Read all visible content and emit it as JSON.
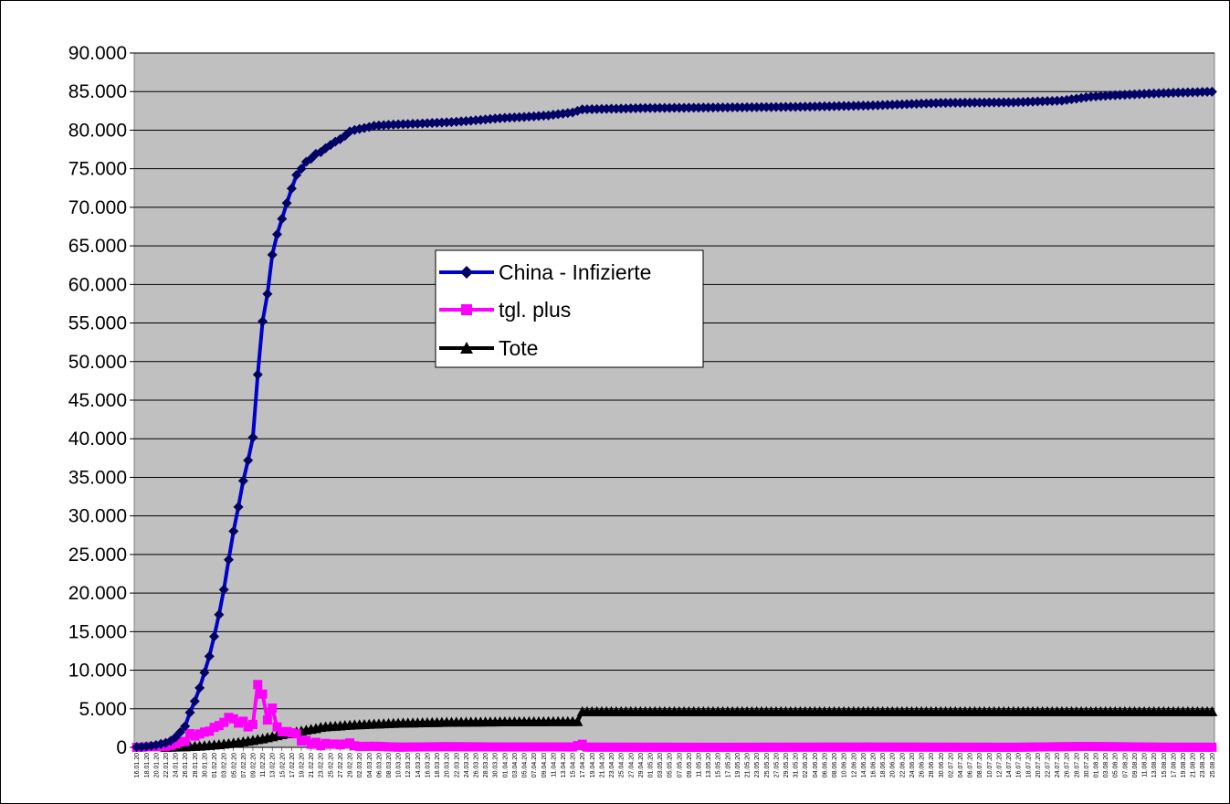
{
  "chart_data": {
    "type": "line",
    "title": "",
    "xlabel": "",
    "ylabel": "",
    "ylim": [
      0,
      90000
    ],
    "yticks": [
      0,
      5000,
      10000,
      15000,
      20000,
      25000,
      30000,
      35000,
      40000,
      45000,
      50000,
      55000,
      60000,
      65000,
      70000,
      75000,
      80000,
      85000,
      90000
    ],
    "ytick_labels": [
      "0",
      "5.000",
      "10.000",
      "15.000",
      "20.000",
      "25.000",
      "30.000",
      "35.000",
      "40.000",
      "45.000",
      "50.000",
      "55.000",
      "60.000",
      "65.000",
      "70.000",
      "75.000",
      "80.000",
      "85.000",
      "90.000"
    ],
    "x_start": "2020-01-16",
    "x_end": "2020-08-25",
    "xtick_every_days": 2,
    "xtick_format": "DD.MM.20",
    "grid": true,
    "plot_background": "#c0c0c0",
    "legend_position": "center",
    "series": [
      {
        "name": "China - Infizierte",
        "color": "#0000cc",
        "marker": "diamond",
        "values_by_date": [
          [
            "2020-01-16",
            45
          ],
          [
            "2020-01-17",
            62
          ],
          [
            "2020-01-18",
            121
          ],
          [
            "2020-01-19",
            198
          ],
          [
            "2020-01-20",
            291
          ],
          [
            "2020-01-21",
            440
          ],
          [
            "2020-01-22",
            571
          ],
          [
            "2020-01-23",
            830
          ],
          [
            "2020-01-24",
            1287
          ],
          [
            "2020-01-25",
            1975
          ],
          [
            "2020-01-26",
            2744
          ],
          [
            "2020-01-27",
            4515
          ],
          [
            "2020-01-28",
            5974
          ],
          [
            "2020-01-29",
            7711
          ],
          [
            "2020-01-30",
            9692
          ],
          [
            "2020-01-31",
            11791
          ],
          [
            "2020-02-01",
            14380
          ],
          [
            "2020-02-02",
            17205
          ],
          [
            "2020-02-03",
            20438
          ],
          [
            "2020-02-04",
            24324
          ],
          [
            "2020-02-05",
            28018
          ],
          [
            "2020-02-06",
            31161
          ],
          [
            "2020-02-07",
            34546
          ],
          [
            "2020-02-08",
            37198
          ],
          [
            "2020-02-09",
            40171
          ],
          [
            "2020-02-10",
            48315
          ],
          [
            "2020-02-11",
            55220
          ],
          [
            "2020-02-12",
            58761
          ],
          [
            "2020-02-13",
            63851
          ],
          [
            "2020-02-14",
            66492
          ],
          [
            "2020-02-15",
            68500
          ],
          [
            "2020-02-16",
            70548
          ],
          [
            "2020-02-17",
            72436
          ],
          [
            "2020-02-18",
            74185
          ],
          [
            "2020-02-19",
            75002
          ],
          [
            "2020-02-20",
            75891
          ],
          [
            "2020-02-21",
            76288
          ],
          [
            "2020-02-22",
            76936
          ],
          [
            "2020-02-23",
            77150
          ],
          [
            "2020-02-24",
            77658
          ],
          [
            "2020-02-25",
            78064
          ],
          [
            "2020-02-26",
            78497
          ],
          [
            "2020-02-27",
            78824
          ],
          [
            "2020-02-28",
            79251
          ],
          [
            "2020-02-29",
            79824
          ],
          [
            "2020-03-01",
            80026
          ],
          [
            "2020-03-02",
            80151
          ],
          [
            "2020-03-03",
            80270
          ],
          [
            "2020-03-04",
            80409
          ],
          [
            "2020-03-05",
            80552
          ],
          [
            "2020-03-07",
            80651
          ],
          [
            "2020-03-10",
            80754
          ],
          [
            "2020-03-15",
            80860
          ],
          [
            "2020-03-20",
            81008
          ],
          [
            "2020-03-25",
            81218
          ],
          [
            "2020-03-31",
            81554
          ],
          [
            "2020-04-05",
            81708
          ],
          [
            "2020-04-10",
            81907
          ],
          [
            "2020-04-15",
            82295
          ],
          [
            "2020-04-17",
            82692
          ],
          [
            "2020-04-30",
            82862
          ],
          [
            "2020-05-15",
            82933
          ],
          [
            "2020-05-31",
            83017
          ],
          [
            "2020-06-15",
            83181
          ],
          [
            "2020-06-30",
            83531
          ],
          [
            "2020-07-15",
            83611
          ],
          [
            "2020-07-25",
            83830
          ],
          [
            "2020-07-31",
            84337
          ],
          [
            "2020-08-05",
            84528
          ],
          [
            "2020-08-15",
            84808
          ],
          [
            "2020-08-25",
            84981
          ]
        ]
      },
      {
        "name": "tgl. plus",
        "color": "#ff00ff",
        "marker": "square",
        "values_by_date": [
          [
            "2020-01-16",
            4
          ],
          [
            "2020-01-17",
            17
          ],
          [
            "2020-01-18",
            59
          ],
          [
            "2020-01-19",
            77
          ],
          [
            "2020-01-20",
            93
          ],
          [
            "2020-01-21",
            149
          ],
          [
            "2020-01-22",
            131
          ],
          [
            "2020-01-23",
            259
          ],
          [
            "2020-01-24",
            457
          ],
          [
            "2020-01-25",
            688
          ],
          [
            "2020-01-26",
            769
          ],
          [
            "2020-01-27",
            1771
          ],
          [
            "2020-01-28",
            1459
          ],
          [
            "2020-01-29",
            1737
          ],
          [
            "2020-01-30",
            1981
          ],
          [
            "2020-01-31",
            2099
          ],
          [
            "2020-02-01",
            2589
          ],
          [
            "2020-02-02",
            2825
          ],
          [
            "2020-02-03",
            3233
          ],
          [
            "2020-02-04",
            3886
          ],
          [
            "2020-02-05",
            3694
          ],
          [
            "2020-02-06",
            3143
          ],
          [
            "2020-02-07",
            3385
          ],
          [
            "2020-02-08",
            2652
          ],
          [
            "2020-02-09",
            2973
          ],
          [
            "2020-02-10",
            8144
          ],
          [
            "2020-02-11",
            6905
          ],
          [
            "2020-02-12",
            3541
          ],
          [
            "2020-02-13",
            5090
          ],
          [
            "2020-02-14",
            2641
          ],
          [
            "2020-02-15",
            2008
          ],
          [
            "2020-02-16",
            2048
          ],
          [
            "2020-02-17",
            1888
          ],
          [
            "2020-02-18",
            1749
          ],
          [
            "2020-02-19",
            817
          ],
          [
            "2020-02-20",
            889
          ],
          [
            "2020-02-21",
            397
          ],
          [
            "2020-02-22",
            648
          ],
          [
            "2020-02-23",
            214
          ],
          [
            "2020-02-24",
            508
          ],
          [
            "2020-02-25",
            406
          ],
          [
            "2020-02-26",
            433
          ],
          [
            "2020-02-27",
            327
          ],
          [
            "2020-02-28",
            427
          ],
          [
            "2020-02-29",
            573
          ],
          [
            "2020-03-01",
            202
          ],
          [
            "2020-03-02",
            125
          ],
          [
            "2020-03-03",
            119
          ],
          [
            "2020-03-04",
            139
          ],
          [
            "2020-03-05",
            143
          ],
          [
            "2020-03-10",
            25
          ],
          [
            "2020-03-20",
            90
          ],
          [
            "2020-03-31",
            50
          ],
          [
            "2020-04-10",
            60
          ],
          [
            "2020-04-15",
            50
          ],
          [
            "2020-04-17",
            400
          ],
          [
            "2020-04-18",
            30
          ],
          [
            "2020-05-15",
            5
          ],
          [
            "2020-06-15",
            40
          ],
          [
            "2020-07-15",
            10
          ],
          [
            "2020-07-30",
            120
          ],
          [
            "2020-08-15",
            20
          ],
          [
            "2020-08-25",
            15
          ]
        ]
      },
      {
        "name": "Tote",
        "color": "#000000",
        "marker": "triangle",
        "values_by_date": [
          [
            "2020-01-22",
            17
          ],
          [
            "2020-01-23",
            25
          ],
          [
            "2020-01-24",
            41
          ],
          [
            "2020-01-25",
            56
          ],
          [
            "2020-01-26",
            80
          ],
          [
            "2020-01-27",
            106
          ],
          [
            "2020-01-28",
            132
          ],
          [
            "2020-01-29",
            170
          ],
          [
            "2020-01-30",
            213
          ],
          [
            "2020-01-31",
            259
          ],
          [
            "2020-02-01",
            304
          ],
          [
            "2020-02-02",
            361
          ],
          [
            "2020-02-03",
            425
          ],
          [
            "2020-02-04",
            490
          ],
          [
            "2020-02-05",
            562
          ],
          [
            "2020-02-06",
            636
          ],
          [
            "2020-02-07",
            722
          ],
          [
            "2020-02-08",
            811
          ],
          [
            "2020-02-09",
            908
          ],
          [
            "2020-02-10",
            1016
          ],
          [
            "2020-02-11",
            1113
          ],
          [
            "2020-02-12",
            1259
          ],
          [
            "2020-02-13",
            1380
          ],
          [
            "2020-02-14",
            1523
          ],
          [
            "2020-02-15",
            1665
          ],
          [
            "2020-02-16",
            1770
          ],
          [
            "2020-02-17",
            1868
          ],
          [
            "2020-02-18",
            2004
          ],
          [
            "2020-02-19",
            2118
          ],
          [
            "2020-02-20",
            2236
          ],
          [
            "2020-02-21",
            2345
          ],
          [
            "2020-02-22",
            2442
          ],
          [
            "2020-02-23",
            2592
          ],
          [
            "2020-02-24",
            2663
          ],
          [
            "2020-02-25",
            2715
          ],
          [
            "2020-02-26",
            2744
          ],
          [
            "2020-02-27",
            2788
          ],
          [
            "2020-02-28",
            2835
          ],
          [
            "2020-02-29",
            2870
          ],
          [
            "2020-03-01",
            2912
          ],
          [
            "2020-03-05",
            3015
          ],
          [
            "2020-03-10",
            3136
          ],
          [
            "2020-03-15",
            3199
          ],
          [
            "2020-03-20",
            3253
          ],
          [
            "2020-03-25",
            3281
          ],
          [
            "2020-03-31",
            3312
          ],
          [
            "2020-04-05",
            3329
          ],
          [
            "2020-04-10",
            3339
          ],
          [
            "2020-04-16",
            3342
          ],
          [
            "2020-04-17",
            4632
          ],
          [
            "2020-05-15",
            4633
          ],
          [
            "2020-06-15",
            4634
          ],
          [
            "2020-07-15",
            4634
          ],
          [
            "2020-08-25",
            4634
          ]
        ]
      }
    ]
  }
}
